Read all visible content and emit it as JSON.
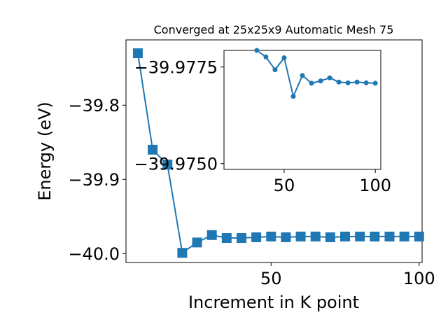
{
  "chart_data": [
    {
      "type": "line",
      "title": "Converged at 25x25x9 Automatic Mesh 75",
      "xlabel": "Increment in K point",
      "ylabel": "Energy (eV)",
      "xlim": [
        1,
        101
      ],
      "ylim": [
        -40.012,
        -39.712
      ],
      "xticks": [
        50,
        100
      ],
      "xtick_labels": [
        "50",
        "100"
      ],
      "yticks": [
        -39.8,
        -39.9,
        -40.0
      ],
      "ytick_labels": [
        "−39.8",
        "−39.9",
        "−40.0"
      ],
      "marker": "square",
      "grid": false,
      "series": [
        {
          "color": "#1f77b4",
          "x": [
            5,
            10,
            15,
            20,
            25,
            30,
            35,
            40,
            45,
            50,
            55,
            60,
            65,
            70,
            75,
            80,
            85,
            90,
            95,
            100
          ],
          "y": [
            -39.73,
            -39.86,
            -39.88,
            -39.999,
            -39.985,
            -39.975,
            -39.979,
            -39.979,
            -39.978,
            -39.977,
            -39.978,
            -39.977,
            -39.977,
            -39.978,
            -39.977,
            -39.977,
            -39.977,
            -39.977,
            -39.977,
            -39.977
          ]
        }
      ]
    },
    {
      "type": "line",
      "title": "",
      "xlabel": "",
      "ylabel": "",
      "xlim": [
        17,
        103
      ],
      "ylim": [
        -39.97485,
        -39.97793
      ],
      "xticks": [
        50,
        100
      ],
      "xtick_labels": [
        "50",
        "100"
      ],
      "yticks": [
        -39.9775,
        -39.975
      ],
      "ytick_labels": [
        "−39.9775",
        "−39.9750"
      ],
      "marker": "circle",
      "grid": false,
      "series": [
        {
          "color": "#1f77b4",
          "x": [
            35,
            40,
            45,
            50,
            55,
            60,
            65,
            70,
            75,
            80,
            85,
            90,
            95,
            100
          ],
          "y": [
            -39.97793,
            -39.97776,
            -39.97743,
            -39.97774,
            -39.97674,
            -39.97728,
            -39.97708,
            -39.97714,
            -39.97722,
            -39.97711,
            -39.97709,
            -39.97711,
            -39.97709,
            -39.97708
          ]
        }
      ]
    }
  ]
}
